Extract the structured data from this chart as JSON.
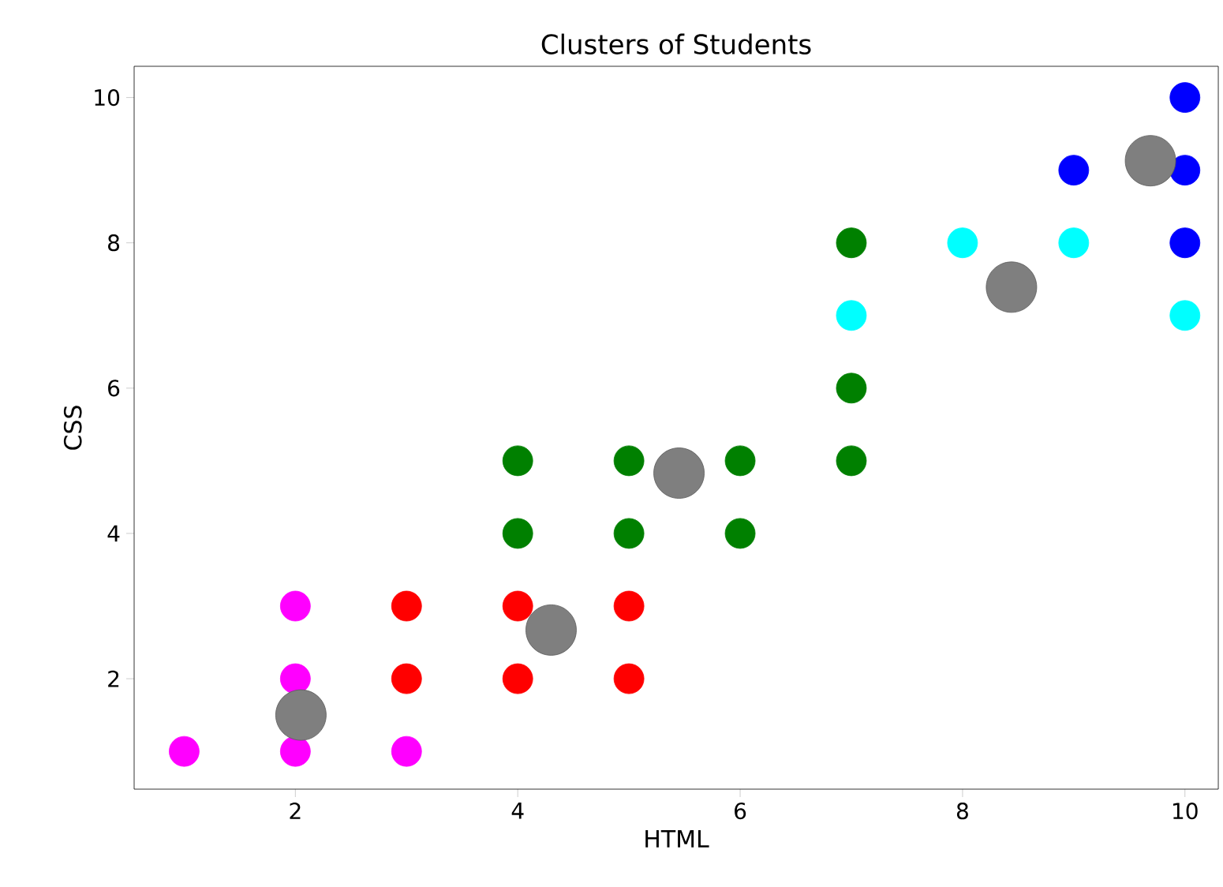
{
  "chart_data": {
    "type": "scatter",
    "title": "Clusters of Students",
    "xlabel": "HTML",
    "ylabel": "CSS",
    "xlim": [
      0.55,
      10.3
    ],
    "ylim": [
      0.48,
      10.43
    ],
    "xticks": [
      2,
      4,
      6,
      8,
      10
    ],
    "yticks": [
      2,
      4,
      6,
      8,
      10
    ],
    "series": [
      {
        "color": "#ff00ff",
        "x": [
          1,
          2,
          2,
          2,
          3
        ],
        "values": [
          1,
          1,
          2,
          3,
          1
        ]
      },
      {
        "color": "#ff0000",
        "x": [
          3,
          3,
          4,
          4,
          5,
          5
        ],
        "values": [
          2,
          3,
          2,
          3,
          2,
          3
        ]
      },
      {
        "color": "#008000",
        "x": [
          4,
          4,
          5,
          5,
          6,
          6,
          7,
          7,
          7
        ],
        "values": [
          4,
          5,
          4,
          5,
          4,
          5,
          5,
          6,
          8
        ]
      },
      {
        "color": "#00ffff",
        "x": [
          7,
          8,
          9,
          10
        ],
        "values": [
          7,
          8,
          8,
          7
        ]
      },
      {
        "color": "#0000ff",
        "x": [
          9,
          10,
          10,
          10
        ],
        "values": [
          9,
          8,
          9,
          10
        ]
      },
      {
        "color": "#7f7f7f",
        "x": [
          2.05,
          4.3,
          5.45,
          8.44,
          9.69
        ],
        "values": [
          1.5,
          2.67,
          4.83,
          7.39,
          9.13
        ]
      }
    ]
  }
}
